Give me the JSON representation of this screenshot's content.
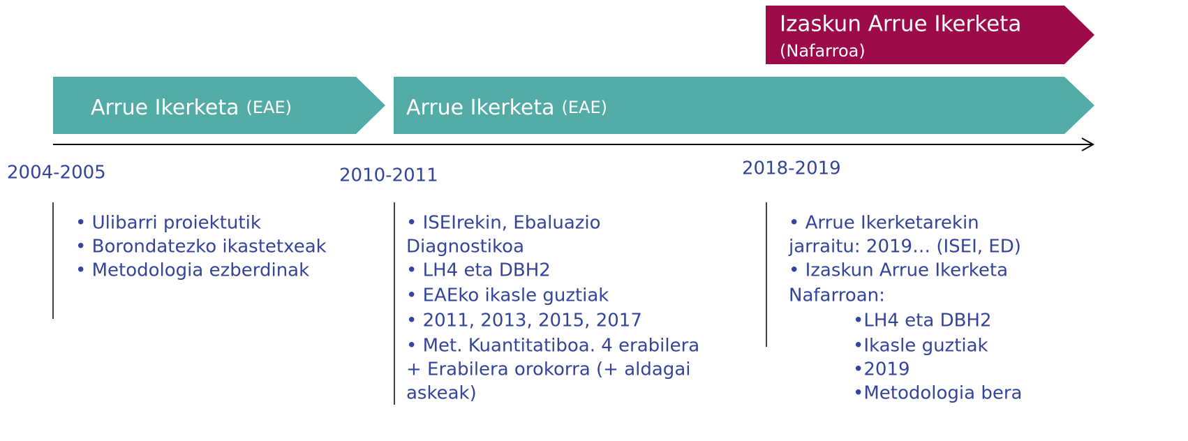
{
  "banner": {
    "title": "Izaskun Arrue Ikerketa",
    "subtitle": "(Nafarroa)"
  },
  "phases": [
    {
      "title": "Arrue Ikerketa",
      "region": "(EAE)"
    },
    {
      "title": "Arrue Ikerketa",
      "region": "(EAE)"
    }
  ],
  "periods": [
    {
      "year": "2004-2005",
      "lines": [
        "• Ulibarri proiektutik",
        "• Borondatezko ikastetxeak",
        "• Metodologia ezberdinak"
      ]
    },
    {
      "year": "2010-2011",
      "lines": [
        "• ISEIrekin, Ebaluazio",
        "Diagnostikoa",
        "• LH4 eta DBH2",
        "• EAEko ikasle guztiak",
        "• 2011, 2013, 2015, 2017",
        "• Met. Kuantitatiboa. 4 erabilera",
        "+ Erabilera orokorra (+ aldagai",
        "askeak)"
      ]
    },
    {
      "year": "2018-2019",
      "lines": [
        "• Arrue Ikerketarekin",
        "jarraitu: 2019… (ISEI, ED)",
        "• Izaskun Arrue Ikerketa",
        "Nafarroan:",
        "•LH4 eta DBH2",
        "•Ikasle guztiak",
        "•2019",
        "•Metodologia bera"
      ]
    }
  ]
}
